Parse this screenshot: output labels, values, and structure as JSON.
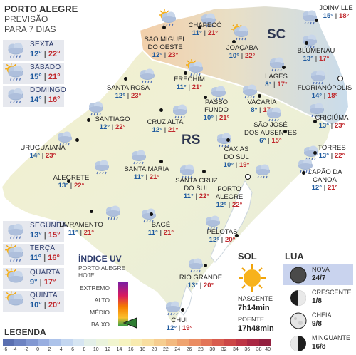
{
  "header": {
    "line1": "PORTO ALEGRE",
    "line2": "PREVISÃO",
    "line3": "PARA 7 DIAS"
  },
  "week": [
    {
      "day": "SEXTA",
      "min": "12°",
      "max": "22°",
      "icon": "rain-cloud-icon"
    },
    {
      "day": "SÁBADO",
      "min": "15°",
      "max": "21°",
      "icon": "sun-rain-cloud-icon"
    },
    {
      "day": "DOMINGO",
      "min": "14°",
      "max": "16°",
      "icon": "rain-cloud-icon"
    },
    {
      "day": "SEGUNDA",
      "min": "13°",
      "max": "15°",
      "icon": "rain-cloud-icon"
    },
    {
      "day": "TERÇA",
      "min": "11°",
      "max": "16°",
      "icon": "sun-rain-cloud-icon"
    },
    {
      "day": "QUARTA",
      "min": "9°",
      "max": "17°",
      "icon": "sun-cloud-icon"
    },
    {
      "day": "QUINTA",
      "min": "10°",
      "max": "20°",
      "icon": "sun-cloud-icon"
    }
  ],
  "states": {
    "sc": "SC",
    "rs": "RS"
  },
  "cities": [
    {
      "name": "SÃO MIGUEL\nDO OESTE",
      "min": "12°",
      "max": "23°"
    },
    {
      "name": "CHAPECÓ",
      "min": "11°",
      "max": "21°"
    },
    {
      "name": "JOAÇABA",
      "min": "10°",
      "max": "22°"
    },
    {
      "name": "JOINVILLE",
      "min": "15°",
      "max": "18°"
    },
    {
      "name": "BLUMENAU",
      "min": "13°",
      "max": "17°"
    },
    {
      "name": "LAGES",
      "min": "8°",
      "max": "17°"
    },
    {
      "name": "FLORIANÓPOLIS",
      "min": "14°",
      "max": "18°"
    },
    {
      "name": "SANTA ROSA",
      "min": "12°",
      "max": "23°"
    },
    {
      "name": "ERECHIM",
      "min": "11°",
      "max": "21°"
    },
    {
      "name": "PASSO\nFUNDO",
      "min": "10°",
      "max": "21°"
    },
    {
      "name": "VACARIA",
      "min": "8°",
      "max": "17°"
    },
    {
      "name": "SANTIAGO",
      "min": "12°",
      "max": "22°"
    },
    {
      "name": "CRUZ ALTA",
      "min": "12°",
      "max": "21°"
    },
    {
      "name": "SÃO JOSÉ\nDOS AUSENTES",
      "min": "6°",
      "max": "15°"
    },
    {
      "name": "CRICIÚMA",
      "min": "13°",
      "max": "23°"
    },
    {
      "name": "URUGUAIANA",
      "min": "14°",
      "max": "23°"
    },
    {
      "name": "TORRES",
      "min": "13°",
      "max": "22°"
    },
    {
      "name": "CAXIAS\nDO SUL",
      "min": "10°",
      "max": "19°"
    },
    {
      "name": "ALEGRETE",
      "min": "13°",
      "max": "22°"
    },
    {
      "name": "SANTA MARIA",
      "min": "11°",
      "max": "21°"
    },
    {
      "name": "CAPÃO DA\nCANOA",
      "min": "12°",
      "max": "21°"
    },
    {
      "name": "SANTA CRUZ\nDO SUL",
      "min": "11°",
      "max": "22°"
    },
    {
      "name": "PORTO\nALEGRE",
      "min": "12°",
      "max": "22°"
    },
    {
      "name": "LIVRAMENTO",
      "min": "11°",
      "max": "21°"
    },
    {
      "name": "BAGÉ",
      "min": "11°",
      "max": "21°"
    },
    {
      "name": "PELOTAS",
      "min": "12°",
      "max": "20°"
    },
    {
      "name": "RIO GRANDE",
      "min": "13°",
      "max": "20°"
    },
    {
      "name": "CHUÍ",
      "min": "12°",
      "max": "19°"
    }
  ],
  "uv": {
    "title": "ÍNDICE UV",
    "sub1": "PORTO ALEGRE",
    "sub2": "HOJE",
    "levels": [
      "EXTREMO",
      "ALTO",
      "MÉDIO",
      "BAIXO"
    ],
    "current": "BAIXO",
    "colors": [
      "#7a1fa2",
      "#d81b60",
      "#f57c00",
      "#fbc02d",
      "#2e9d4a"
    ]
  },
  "sun": {
    "title": "SOL",
    "rise_label": "NASCENTE",
    "rise": "7h14min",
    "set_label": "POENTE",
    "set": "17h48min"
  },
  "moon": {
    "title": "LUA",
    "phases": [
      {
        "name": "NOVA",
        "date": "24/7"
      },
      {
        "name": "CRESCENTE",
        "date": "1/8"
      },
      {
        "name": "CHEIA",
        "date": "9/8"
      },
      {
        "name": "MINGUANTE",
        "date": "16/8"
      }
    ]
  },
  "legend": {
    "title": "LEGENDA",
    "ticks": [
      "-6",
      "-4",
      "-2",
      "0",
      "2",
      "4",
      "6",
      "8",
      "10",
      "12",
      "14",
      "16",
      "18",
      "20",
      "22",
      "24",
      "26",
      "28",
      "30",
      "32",
      "34",
      "36",
      "38",
      "40"
    ],
    "colors": [
      "#5a6fb0",
      "#6d83c2",
      "#8298d2",
      "#98aee0",
      "#adc3ea",
      "#c3d6f0",
      "#d6e5f2",
      "#e3efe8",
      "#eaf3dc",
      "#f1f5cf",
      "#f6f3c0",
      "#f8ebb0",
      "#f8dea0",
      "#f6cd8f",
      "#f3b97f",
      "#ef a36f",
      "#ea8c62",
      "#e27457",
      "#d85c4e",
      "#cc4747",
      "#bd3545",
      "#a92743",
      "#92203f"
    ]
  }
}
